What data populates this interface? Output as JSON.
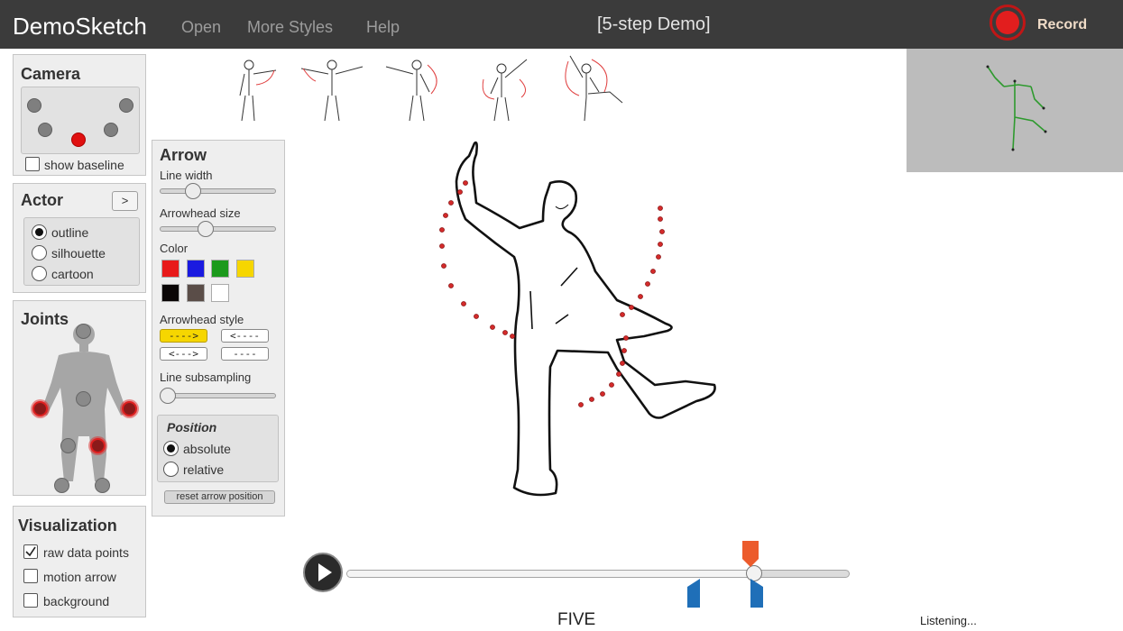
{
  "header": {
    "brand": "DemoSketch",
    "nav": [
      "Open",
      "More Styles",
      "Help"
    ],
    "demo_title": "[5-step Demo]",
    "record_label": "Record"
  },
  "camera": {
    "title": "Camera",
    "show_baseline_label": "show baseline",
    "show_baseline": false
  },
  "actor": {
    "title": "Actor",
    "toggle_label": ">",
    "options": [
      "outline",
      "silhouette",
      "cartoon"
    ],
    "selected": "outline"
  },
  "joints": {
    "title": "Joints"
  },
  "visualization": {
    "title": "Visualization",
    "options": [
      {
        "label": "raw data points",
        "checked": true
      },
      {
        "label": "motion arrow",
        "checked": false
      },
      {
        "label": "background",
        "checked": false
      }
    ]
  },
  "arrow": {
    "title": "Arrow",
    "line_width_label": "Line width",
    "line_width_value": 0.25,
    "arrowhead_size_label": "Arrowhead size",
    "arrowhead_size_value": 0.38,
    "color_label": "Color",
    "colors": [
      "#e81a1a",
      "#1a1ae0",
      "#1c9a1c",
      "#f6d600",
      "#0a0606",
      "#5a4d48",
      "#ffffff"
    ],
    "arrowhead_style_label": "Arrowhead style",
    "styles": [
      "---->",
      "<----",
      "<--->",
      "----"
    ],
    "selected_style": "---->",
    "line_subsampling_label": "Line subsampling",
    "line_subsampling_value": 0.0,
    "position": {
      "title": "Position",
      "options": [
        "absolute",
        "relative"
      ],
      "selected": "absolute"
    },
    "reset_label": "reset arrow position"
  },
  "timeline": {
    "progress": 0.81,
    "caption": "FIVE"
  },
  "status": "Listening..."
}
